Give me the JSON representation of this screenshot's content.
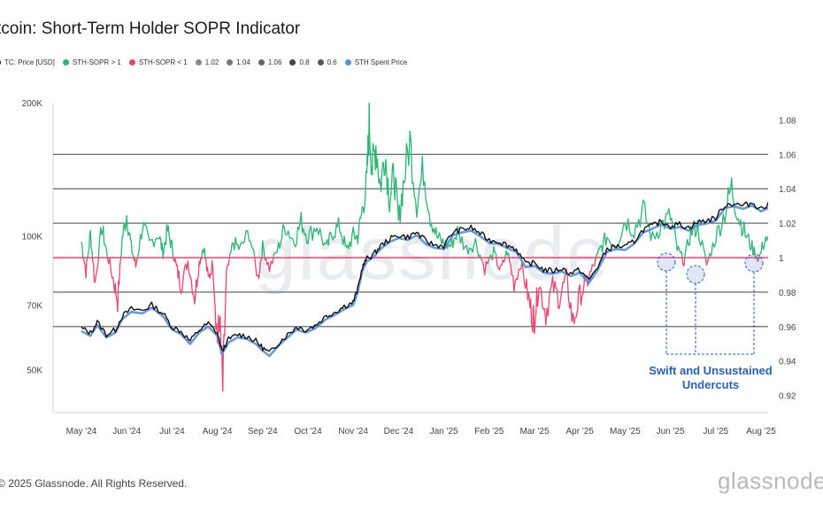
{
  "header": {
    "title": "tcoin: Short-Term Holder SOPR Indicator"
  },
  "legend": {
    "items": [
      {
        "label": "TC: Price [USD]",
        "color": "#111111"
      },
      {
        "label": "STH-SOPR > 1",
        "color": "#2bb673"
      },
      {
        "label": "STH-SOPR < 1",
        "color": "#e8456f"
      },
      {
        "label": "1.02",
        "color": "#888888"
      },
      {
        "label": "1.04",
        "color": "#777777"
      },
      {
        "label": "1.06",
        "color": "#666666"
      },
      {
        "label": "0.8",
        "color": "#444444"
      },
      {
        "label": "0.6",
        "color": "#555555"
      },
      {
        "label": "STH Spent Price",
        "color": "#5b8fd6"
      }
    ]
  },
  "footer": {
    "copyright": "2025 Glassnode. All Rights Reserved.",
    "logo_text": "glassnode",
    "watermark": "glassnode"
  },
  "annotation": {
    "line1": "Swift and Unsustained",
    "line2": "Undercuts"
  },
  "chart_data": {
    "type": "line",
    "colors": {
      "above": "#2bb673",
      "below": "#e8456f",
      "price": "#111111",
      "spent": "#5b8fd6",
      "annotation": "#2a5fb3"
    },
    "x_ticks": [
      "May '24",
      "Jun '24",
      "Jul '24",
      "Aug '24",
      "Sep '24",
      "Oct '24",
      "Nov '24",
      "Dec '24",
      "Jan '25",
      "Feb '25",
      "Mar '25",
      "Apr '25",
      "May '25",
      "Jun '25",
      "Jul '25",
      "Aug '25"
    ],
    "y_left": {
      "scale": "log",
      "range": [
        40000,
        200000
      ],
      "ticks": [
        {
          "v": 50000,
          "label": "50K"
        },
        {
          "v": 70000,
          "label": "70K"
        },
        {
          "v": 100000,
          "label": "100K"
        },
        {
          "v": 200000,
          "label": "200K"
        }
      ]
    },
    "y_right": {
      "range": [
        0.91,
        1.09
      ],
      "ticks": [
        0.92,
        0.94,
        0.96,
        0.98,
        1,
        1.02,
        1.04,
        1.06,
        1.08
      ]
    },
    "ref_lines": [
      0.96,
      0.98,
      1.0,
      1.02,
      1.04,
      1.06
    ],
    "price_series": [
      [
        0.0,
        62000
      ],
      [
        0.2,
        60500
      ],
      [
        0.35,
        64000
      ],
      [
        0.55,
        60000
      ],
      [
        0.75,
        61500
      ],
      [
        0.9,
        66000
      ],
      [
        1.1,
        68500
      ],
      [
        1.35,
        68000
      ],
      [
        1.55,
        70000
      ],
      [
        1.8,
        67000
      ],
      [
        2.0,
        62500
      ],
      [
        2.2,
        61000
      ],
      [
        2.4,
        58000
      ],
      [
        2.6,
        61500
      ],
      [
        2.8,
        63500
      ],
      [
        3.0,
        60500
      ],
      [
        3.1,
        55000
      ],
      [
        3.25,
        58500
      ],
      [
        3.45,
        60000
      ],
      [
        3.65,
        59500
      ],
      [
        3.85,
        58000
      ],
      [
        4.0,
        56000
      ],
      [
        4.15,
        54500
      ],
      [
        4.35,
        57500
      ],
      [
        4.55,
        60000
      ],
      [
        4.75,
        62500
      ],
      [
        4.95,
        61500
      ],
      [
        5.15,
        62800
      ],
      [
        5.4,
        66000
      ],
      [
        5.6,
        67500
      ],
      [
        5.8,
        69500
      ],
      [
        6.0,
        71000
      ],
      [
        6.1,
        76000
      ],
      [
        6.2,
        85000
      ],
      [
        6.3,
        89000
      ],
      [
        6.45,
        91000
      ],
      [
        6.6,
        95000
      ],
      [
        6.8,
        98500
      ],
      [
        7.0,
        100500
      ],
      [
        7.2,
        99500
      ],
      [
        7.4,
        102000
      ],
      [
        7.6,
        97500
      ],
      [
        7.8,
        95500
      ],
      [
        8.0,
        95000
      ],
      [
        8.2,
        102000
      ],
      [
        8.4,
        103500
      ],
      [
        8.6,
        104500
      ],
      [
        8.8,
        101500
      ],
      [
        9.0,
        98000
      ],
      [
        9.2,
        97500
      ],
      [
        9.4,
        95500
      ],
      [
        9.6,
        93500
      ],
      [
        9.8,
        86500
      ],
      [
        10.0,
        87000
      ],
      [
        10.2,
        84000
      ],
      [
        10.4,
        83500
      ],
      [
        10.6,
        84500
      ],
      [
        10.8,
        82500
      ],
      [
        11.0,
        84000
      ],
      [
        11.2,
        79500
      ],
      [
        11.4,
        85500
      ],
      [
        11.6,
        93500
      ],
      [
        11.8,
        95000
      ],
      [
        12.0,
        94500
      ],
      [
        12.2,
        97500
      ],
      [
        12.4,
        103500
      ],
      [
        12.6,
        105500
      ],
      [
        12.8,
        108000
      ],
      [
        13.0,
        105500
      ],
      [
        13.2,
        106500
      ],
      [
        13.4,
        104500
      ],
      [
        13.6,
        107500
      ],
      [
        13.8,
        108500
      ],
      [
        14.0,
        110000
      ],
      [
        14.2,
        117500
      ],
      [
        14.4,
        118500
      ],
      [
        14.6,
        117000
      ],
      [
        14.8,
        119000
      ],
      [
        15.0,
        115500
      ],
      [
        15.2,
        118000
      ],
      [
        15.4,
        121000
      ]
    ],
    "sopr_series": [
      [
        0.0,
        1.009
      ],
      [
        0.1,
        0.992
      ],
      [
        0.2,
        1.014
      ],
      [
        0.3,
        0.985
      ],
      [
        0.45,
        1.018
      ],
      [
        0.55,
        1.004
      ],
      [
        0.7,
        0.988
      ],
      [
        0.8,
        0.975
      ],
      [
        0.9,
        1.011
      ],
      [
        1.0,
        1.025
      ],
      [
        1.1,
        1.006
      ],
      [
        1.2,
        0.995
      ],
      [
        1.35,
        1.019
      ],
      [
        1.5,
        1.008
      ],
      [
        1.7,
        1.014
      ],
      [
        1.8,
        1.003
      ],
      [
        1.9,
        1.016
      ],
      [
        2.0,
        1.006
      ],
      [
        2.1,
        0.994
      ],
      [
        2.2,
        0.984
      ],
      [
        2.35,
        0.998
      ],
      [
        2.5,
        0.977
      ],
      [
        2.6,
        0.997
      ],
      [
        2.7,
        1.007
      ],
      [
        2.8,
        0.987
      ],
      [
        2.9,
        0.997
      ],
      [
        3.0,
        0.952
      ],
      [
        3.05,
        0.964
      ],
      [
        3.12,
        0.924
      ],
      [
        3.2,
        0.989
      ],
      [
        3.35,
        1.009
      ],
      [
        3.5,
        1.005
      ],
      [
        3.7,
        1.015
      ],
      [
        3.9,
        0.988
      ],
      [
        4.0,
        1.006
      ],
      [
        4.15,
        0.994
      ],
      [
        4.35,
        1.006
      ],
      [
        4.5,
        1.019
      ],
      [
        4.7,
        1.009
      ],
      [
        4.85,
        1.021
      ],
      [
        5.0,
        1.012
      ],
      [
        5.2,
        1.019
      ],
      [
        5.4,
        1.005
      ],
      [
        5.55,
        1.015
      ],
      [
        5.7,
        1.018
      ],
      [
        5.85,
        1.004
      ],
      [
        6.0,
        1.013
      ],
      [
        6.1,
        1.012
      ],
      [
        6.2,
        1.028
      ],
      [
        6.3,
        1.044
      ],
      [
        6.35,
        1.078
      ],
      [
        6.42,
        1.052
      ],
      [
        6.5,
        1.066
      ],
      [
        6.6,
        1.041
      ],
      [
        6.7,
        1.062
      ],
      [
        6.8,
        1.034
      ],
      [
        6.9,
        1.049
      ],
      [
        7.0,
        1.021
      ],
      [
        7.1,
        1.042
      ],
      [
        7.25,
        1.068
      ],
      [
        7.4,
        1.031
      ],
      [
        7.55,
        1.052
      ],
      [
        7.7,
        1.024
      ],
      [
        7.85,
        1.012
      ],
      [
        8.0,
        1.008
      ],
      [
        8.15,
        1.007
      ],
      [
        8.3,
        1.015
      ],
      [
        8.5,
        1.005
      ],
      [
        8.7,
        1.009
      ],
      [
        8.9,
        0.994
      ],
      [
        9.1,
        1.003
      ],
      [
        9.25,
        0.992
      ],
      [
        9.4,
        1.004
      ],
      [
        9.55,
        0.985
      ],
      [
        9.7,
        0.997
      ],
      [
        9.85,
        0.979
      ],
      [
        9.95,
        0.966
      ],
      [
        10.0,
        0.965
      ],
      [
        10.1,
        0.985
      ],
      [
        10.25,
        0.968
      ],
      [
        10.4,
        0.984
      ],
      [
        10.55,
        0.976
      ],
      [
        10.7,
        0.989
      ],
      [
        10.85,
        0.962
      ],
      [
        11.0,
        0.978
      ],
      [
        11.15,
        0.985
      ],
      [
        11.3,
        0.995
      ],
      [
        11.45,
        1.005
      ],
      [
        11.6,
        1.012
      ],
      [
        11.8,
        1.007
      ],
      [
        12.0,
        1.022
      ],
      [
        12.2,
        1.016
      ],
      [
        12.4,
        1.028
      ],
      [
        12.6,
        1.011
      ],
      [
        12.8,
        1.019
      ],
      [
        13.0,
        1.024
      ],
      [
        13.15,
        1.005
      ],
      [
        13.3,
        0.998
      ],
      [
        13.45,
        1.015
      ],
      [
        13.6,
        1.018
      ],
      [
        13.8,
        0.996
      ],
      [
        14.0,
        1.012
      ],
      [
        14.2,
        1.026
      ],
      [
        14.35,
        1.041
      ],
      [
        14.5,
        1.024
      ],
      [
        14.65,
        1.014
      ],
      [
        14.8,
        1.006
      ],
      [
        14.95,
        0.999
      ],
      [
        15.1,
        1.012
      ],
      [
        15.25,
        1.004
      ],
      [
        15.4,
        1.011
      ]
    ]
  }
}
